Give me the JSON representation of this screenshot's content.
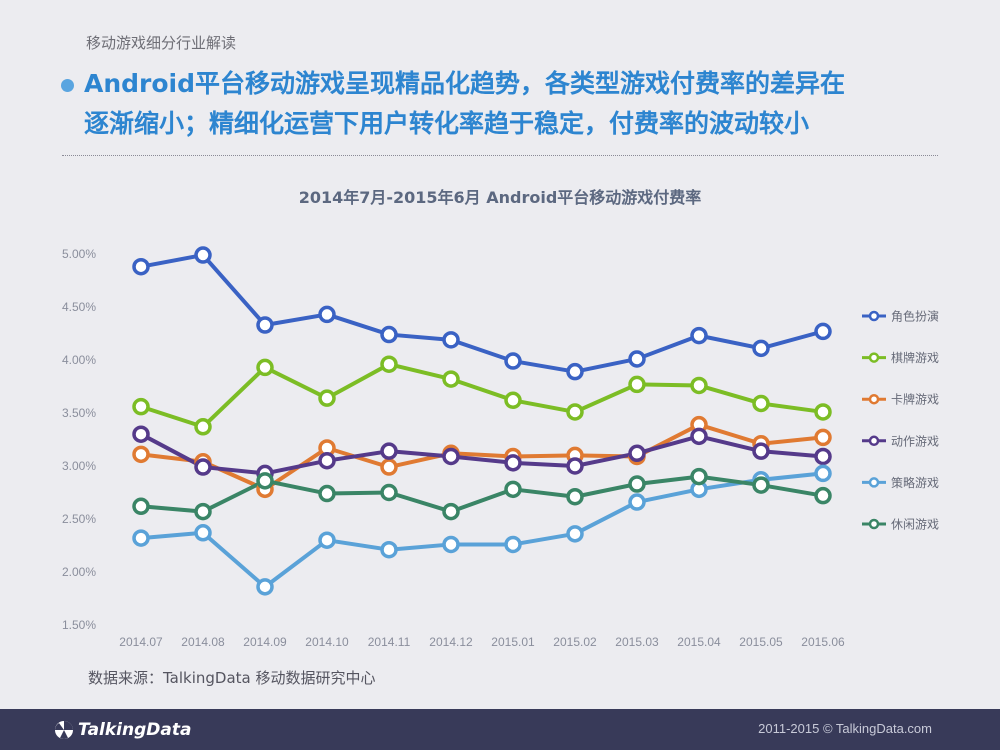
{
  "header": {
    "section": "移动游戏细分行业解读",
    "headline_line1": "Android平台移动游戏呈现精品化趋势，各类型游戏付费率的差异在",
    "headline_line2": "逐渐缩小；精细化运营下用户转化率趋于稳定，付费率的波动较小"
  },
  "chart_data": {
    "type": "line",
    "title": "2014年7月-2015年6月 Android平台移动游戏付费率",
    "categories": [
      "2014.07",
      "2014.08",
      "2014.09",
      "2014.10",
      "2014.11",
      "2014.12",
      "2015.01",
      "2015.02",
      "2015.03",
      "2015.04",
      "2015.05",
      "2015.06"
    ],
    "ylim": [
      1.5,
      5.0
    ],
    "yticks": [
      "1.50%",
      "2.00%",
      "2.50%",
      "3.00%",
      "3.50%",
      "4.00%",
      "4.50%",
      "5.00%"
    ],
    "ytick_values": [
      1.5,
      2.0,
      2.5,
      3.0,
      3.5,
      4.0,
      4.5,
      5.0
    ],
    "unit": "%",
    "grid": false,
    "legend_position": "right",
    "series": [
      {
        "name": "角色扮演",
        "color": "#3a62c4",
        "values": [
          4.88,
          4.99,
          4.33,
          4.43,
          4.24,
          4.19,
          3.99,
          3.89,
          4.01,
          4.23,
          4.11,
          4.27
        ]
      },
      {
        "name": "棋牌游戏",
        "color": "#7cbd25",
        "values": [
          3.56,
          3.37,
          3.93,
          3.64,
          3.96,
          3.82,
          3.62,
          3.51,
          3.77,
          3.76,
          3.59,
          3.51
        ]
      },
      {
        "name": "卡牌游戏",
        "color": "#e07a32",
        "values": [
          3.11,
          3.04,
          2.78,
          3.17,
          2.99,
          3.12,
          3.09,
          3.1,
          3.09,
          3.39,
          3.21,
          3.27
        ]
      },
      {
        "name": "动作游戏",
        "color": "#553a8a",
        "values": [
          3.3,
          2.99,
          2.93,
          3.05,
          3.14,
          3.09,
          3.03,
          3.0,
          3.12,
          3.28,
          3.14,
          3.09
        ]
      },
      {
        "name": "策略游戏",
        "color": "#5aa2d8",
        "values": [
          2.32,
          2.37,
          1.86,
          2.3,
          2.21,
          2.26,
          2.26,
          2.36,
          2.66,
          2.78,
          2.87,
          2.93
        ]
      },
      {
        "name": "休闲游戏",
        "color": "#3a8566",
        "values": [
          2.62,
          2.57,
          2.86,
          2.74,
          2.75,
          2.57,
          2.78,
          2.71,
          2.83,
          2.9,
          2.82,
          2.72
        ]
      }
    ]
  },
  "source": "数据来源：TalkingData 移动数据研究中心",
  "footer": {
    "logo_text": "TalkingData",
    "copyright": "2011-2015 © TalkingData.com"
  }
}
